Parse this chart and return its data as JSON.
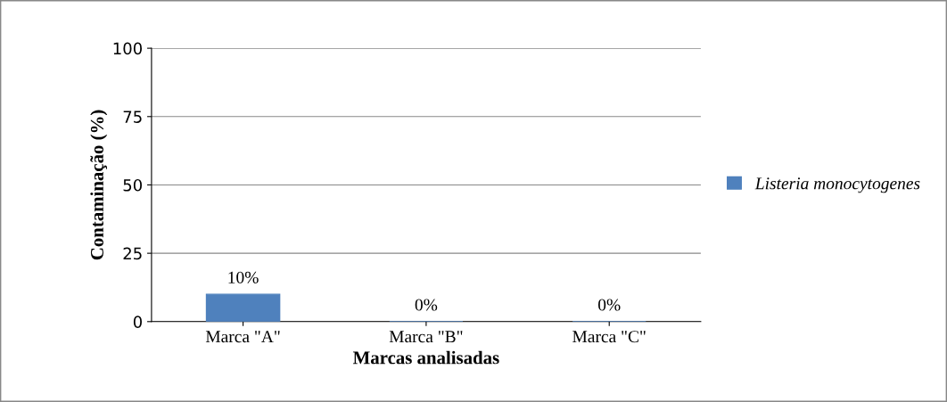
{
  "chart_data": {
    "type": "bar",
    "xlabel": "Marcas analisadas",
    "ylabel": "Contaminação (%)",
    "categories": [
      "Marca \"A\"",
      "Marca \"B\"",
      "Marca \"C\""
    ],
    "series": [
      {
        "name": "Listeria monocytogenes",
        "color": "#4f81bd",
        "values": [
          10,
          0,
          0
        ],
        "value_labels": [
          "10%",
          "0%",
          "0%"
        ]
      }
    ],
    "ylim": [
      0,
      100
    ],
    "yticks": [
      0,
      25,
      50,
      75,
      100
    ],
    "grid": "y",
    "legend": "right"
  }
}
